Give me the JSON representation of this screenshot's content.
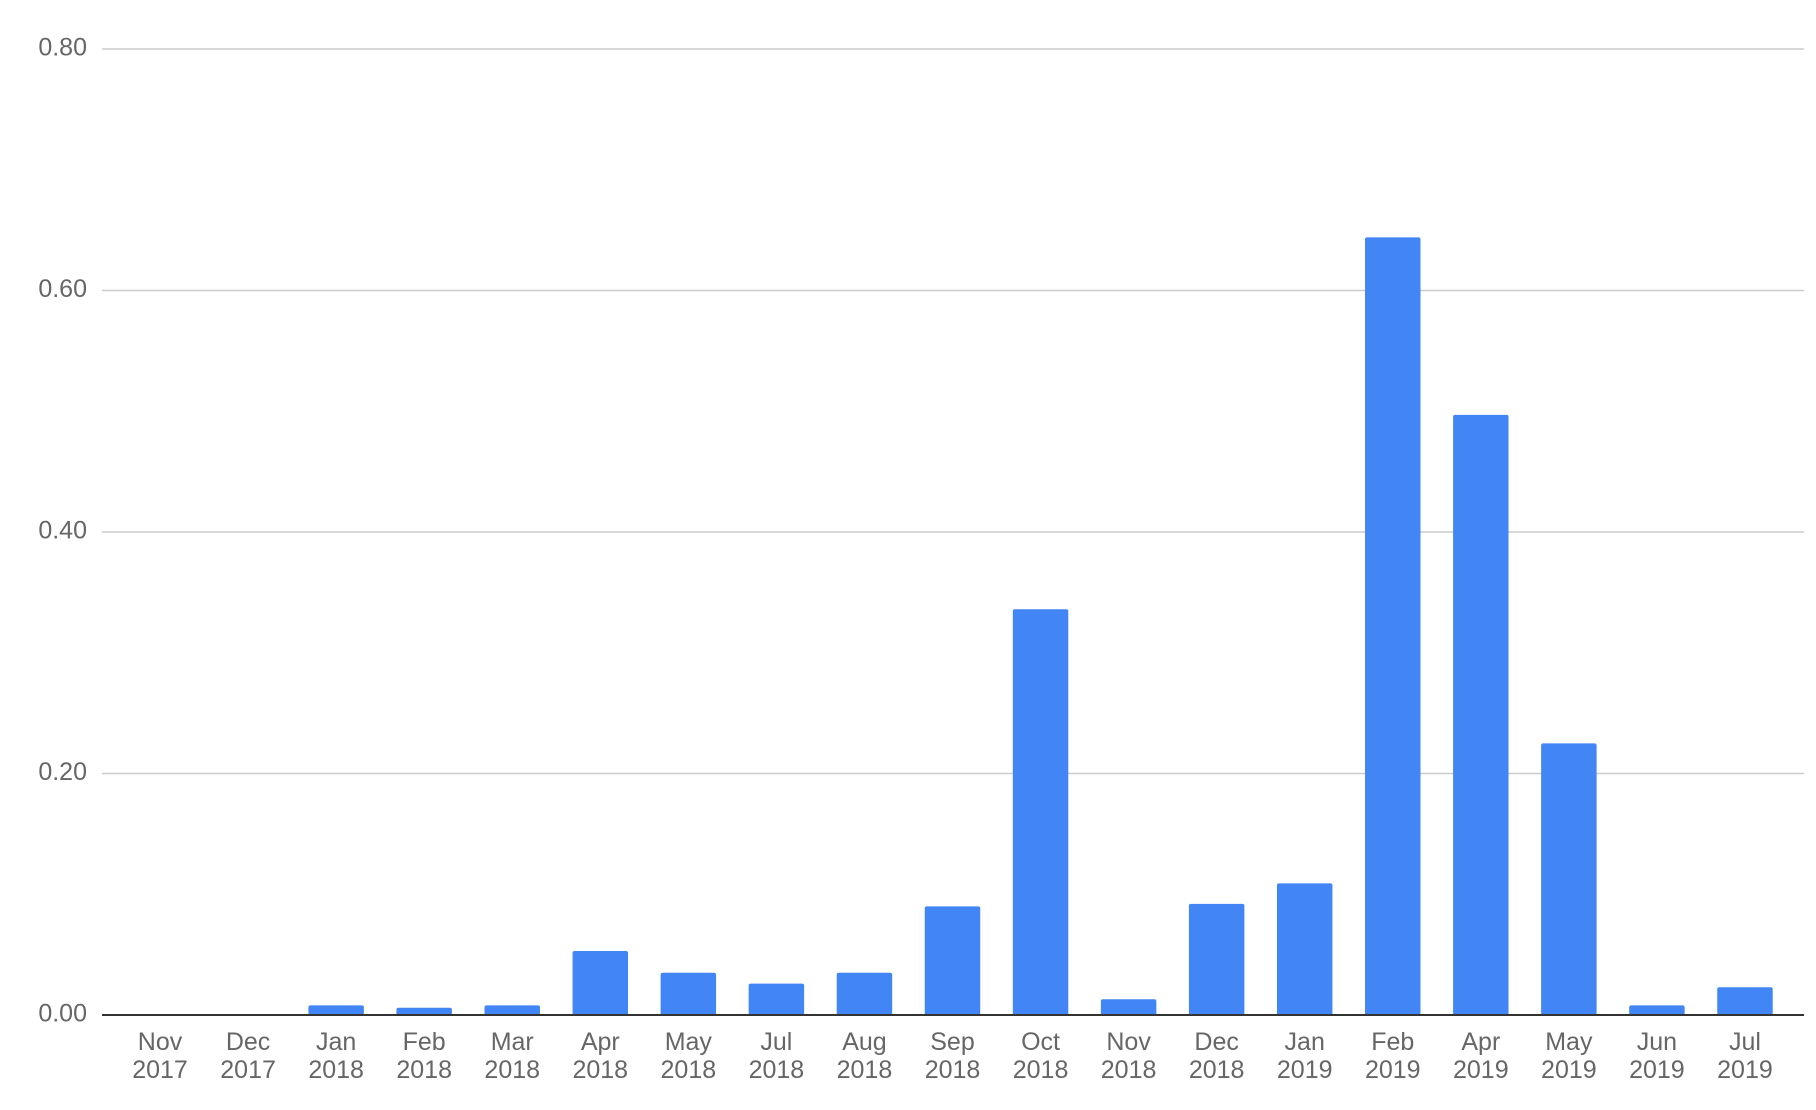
{
  "chart_data": {
    "type": "bar",
    "categories": [
      "Nov 2017",
      "Dec 2017",
      "Jan 2018",
      "Feb 2018",
      "Mar 2018",
      "Apr 2018",
      "May 2018",
      "Jul 2018",
      "Aug 2018",
      "Sep 2018",
      "Oct 2018",
      "Nov 2018",
      "Dec 2018",
      "Jan 2019",
      "Feb 2019",
      "Apr 2019",
      "May 2019",
      "Jun 2019",
      "Jul 2019"
    ],
    "values": [
      0,
      0,
      0.008,
      0.006,
      0.008,
      0.053,
      0.035,
      0.026,
      0.035,
      0.09,
      0.336,
      0.013,
      0.092,
      0.109,
      0.644,
      0.497,
      0.225,
      0.008,
      0.023
    ],
    "color": "#4285f4",
    "ylim": [
      0,
      0.8
    ],
    "yticks": [
      {
        "value": 0,
        "label": "0.00"
      },
      {
        "value": 0.2,
        "label": "0.20"
      },
      {
        "value": 0.4,
        "label": "0.40"
      },
      {
        "value": 0.6,
        "label": "0.60"
      },
      {
        "value": 0.8,
        "label": "0.80"
      }
    ],
    "grid": true
  }
}
